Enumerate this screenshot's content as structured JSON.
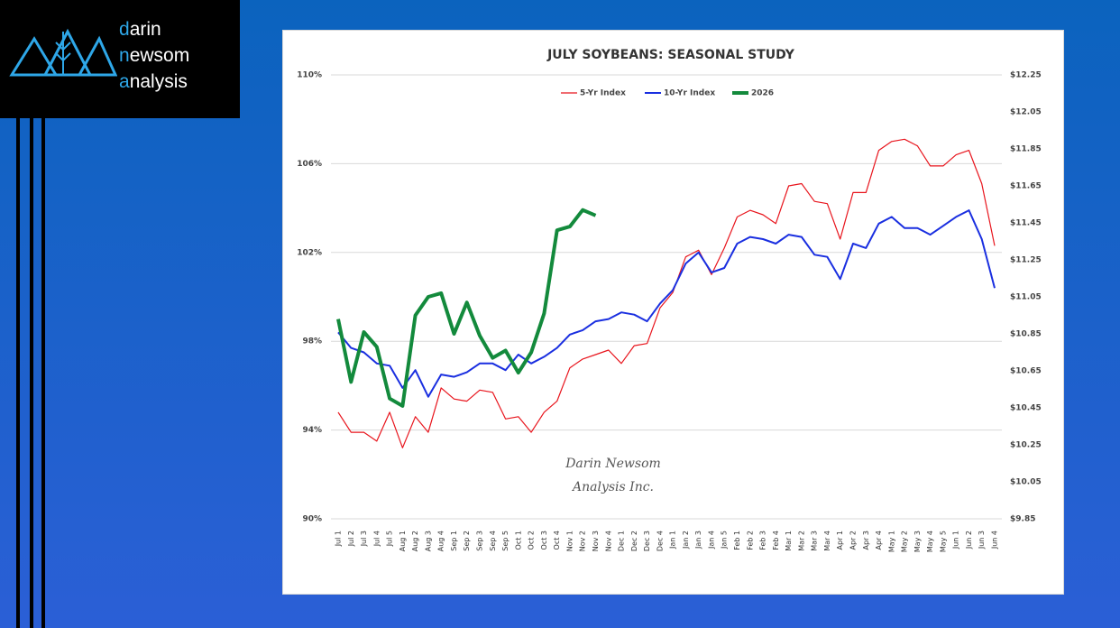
{
  "logo": {
    "lines": [
      "darin",
      "newsom",
      "analysis"
    ]
  },
  "chart_data": {
    "type": "line",
    "title": "JULY SOYBEANS: SEASONAL STUDY",
    "watermark": [
      "Darin Newsom",
      "Analysis Inc."
    ],
    "categories": [
      "Jul 1",
      "Jul 2",
      "Jul 3",
      "Jul 4",
      "Jul 5",
      "Aug 1",
      "Aug 2",
      "Aug 3",
      "Aug 4",
      "Sep 1",
      "Sep 2",
      "Sep 3",
      "Sep 4",
      "Sep 5",
      "Oct 1",
      "Oct 2",
      "Oct 3",
      "Oct 4",
      "Nov 1",
      "Nov 2",
      "Nov 3",
      "Nov 4",
      "Dec 1",
      "Dec 2",
      "Dec 3",
      "Dec 4",
      "Jan 1",
      "Jan 2",
      "Jan 3",
      "Jan 4",
      "Jan 5",
      "Feb 1",
      "Feb 2",
      "Feb 3",
      "Feb 4",
      "Mar 1",
      "Mar 2",
      "Mar 3",
      "Mar 4",
      "Apr 1",
      "Apr 2",
      "Apr 3",
      "Apr 4",
      "May 1",
      "May 2",
      "May 3",
      "May 4",
      "May 5",
      "Jun 1",
      "Jun 2",
      "Jun 3",
      "Jun 4"
    ],
    "series": [
      {
        "name": "5-Yr Index",
        "color": "#e8141c",
        "width": 1.2,
        "values": [
          94.8,
          93.9,
          93.9,
          93.5,
          94.8,
          93.2,
          94.6,
          93.9,
          95.9,
          95.4,
          95.3,
          95.8,
          95.7,
          94.5,
          94.6,
          93.9,
          94.8,
          95.3,
          96.8,
          97.2,
          97.4,
          97.6,
          97.0,
          97.8,
          97.9,
          99.5,
          100.2,
          101.8,
          102.1,
          101.0,
          102.2,
          103.6,
          103.9,
          103.7,
          103.3,
          105.0,
          105.1,
          104.3,
          104.2,
          102.6,
          104.7,
          104.7,
          106.6,
          107.0,
          107.1,
          106.8,
          105.9,
          105.9,
          106.4,
          106.6,
          105.1,
          102.3
        ]
      },
      {
        "name": "10-Yr Index",
        "color": "#1a2fe0",
        "width": 2,
        "values": [
          98.4,
          97.7,
          97.5,
          97.0,
          96.9,
          95.9,
          96.7,
          95.5,
          96.5,
          96.4,
          96.6,
          97.0,
          97.0,
          96.7,
          97.4,
          97.0,
          97.3,
          97.7,
          98.3,
          98.5,
          98.9,
          99.0,
          99.3,
          99.2,
          98.9,
          99.7,
          100.3,
          101.5,
          102.0,
          101.1,
          101.3,
          102.4,
          102.7,
          102.6,
          102.4,
          102.8,
          102.7,
          101.9,
          101.8,
          100.8,
          102.4,
          102.2,
          103.3,
          103.6,
          103.1,
          103.1,
          102.8,
          103.2,
          103.6,
          103.9,
          102.6,
          100.4
        ]
      },
      {
        "name": "2026",
        "color": "#138a3c",
        "width": 4,
        "axis": "y2",
        "values": [
          10.93,
          10.59,
          10.86,
          10.78,
          10.5,
          10.46,
          10.95,
          11.05,
          11.07,
          10.85,
          11.02,
          10.84,
          10.72,
          10.76,
          10.64,
          10.75,
          10.96,
          11.41,
          11.43,
          11.52,
          11.49,
          null,
          null,
          null,
          null,
          null,
          null,
          null,
          null,
          null,
          null,
          null,
          null,
          null,
          null,
          null,
          null,
          null,
          null,
          null,
          null,
          null,
          null,
          null,
          null,
          null,
          null,
          null,
          null,
          null,
          null,
          null
        ]
      }
    ],
    "ylim": [
      90,
      110
    ],
    "yticks": [
      {
        "value": 90,
        "label": "90%"
      },
      {
        "value": 94,
        "label": "94%"
      },
      {
        "value": 98,
        "label": "98%"
      },
      {
        "value": 102,
        "label": "102%"
      },
      {
        "value": 106,
        "label": "106%"
      },
      {
        "value": 110,
        "label": "110%"
      }
    ],
    "y2lim": [
      9.85,
      12.25
    ],
    "y2ticks": [
      {
        "value": 9.85,
        "label": "$9.85"
      },
      {
        "value": 10.05,
        "label": "$10.05"
      },
      {
        "value": 10.25,
        "label": "$10.25"
      },
      {
        "value": 10.45,
        "label": "$10.45"
      },
      {
        "value": 10.65,
        "label": "$10.65"
      },
      {
        "value": 10.85,
        "label": "$10.85"
      },
      {
        "value": 11.05,
        "label": "$11.05"
      },
      {
        "value": 11.25,
        "label": "$11.25"
      },
      {
        "value": 11.45,
        "label": "$11.45"
      },
      {
        "value": 11.65,
        "label": "$11.65"
      },
      {
        "value": 11.85,
        "label": "$11.85"
      },
      {
        "value": 12.05,
        "label": "$12.05"
      },
      {
        "value": 12.25,
        "label": "$12.25"
      }
    ],
    "grid": true,
    "legend": "top"
  }
}
